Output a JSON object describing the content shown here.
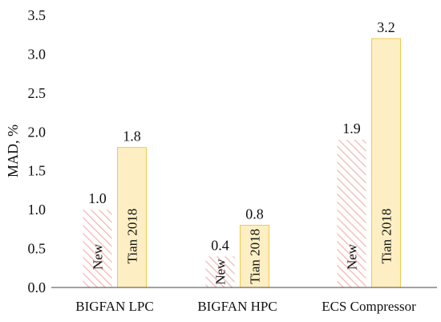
{
  "chart_data": {
    "type": "bar",
    "title": "",
    "xlabel": "",
    "ylabel": "MAD, %",
    "ylim": [
      0,
      3.5
    ],
    "yticks": [
      "0.0",
      "0.5",
      "1.0",
      "1.5",
      "2.0",
      "2.5",
      "3.0",
      "3.5"
    ],
    "grid": false,
    "legend": "none",
    "categories": [
      "BIGFAN LPC",
      "BIGFAN HPC",
      "ECS Compressor"
    ],
    "series": [
      {
        "name": "New",
        "values": [
          1.0,
          0.4,
          1.9
        ],
        "labels": [
          "1.0",
          "0.4",
          "1.9"
        ],
        "fill": "hatched",
        "color": "#f4b6b6"
      },
      {
        "name": "Tian 2018",
        "values": [
          1.8,
          0.8,
          3.2
        ],
        "labels": [
          "1.8",
          "0.8",
          "3.2"
        ],
        "fill": "solid",
        "color": "#fdefc3",
        "stroke": "#f2c94c"
      }
    ]
  }
}
